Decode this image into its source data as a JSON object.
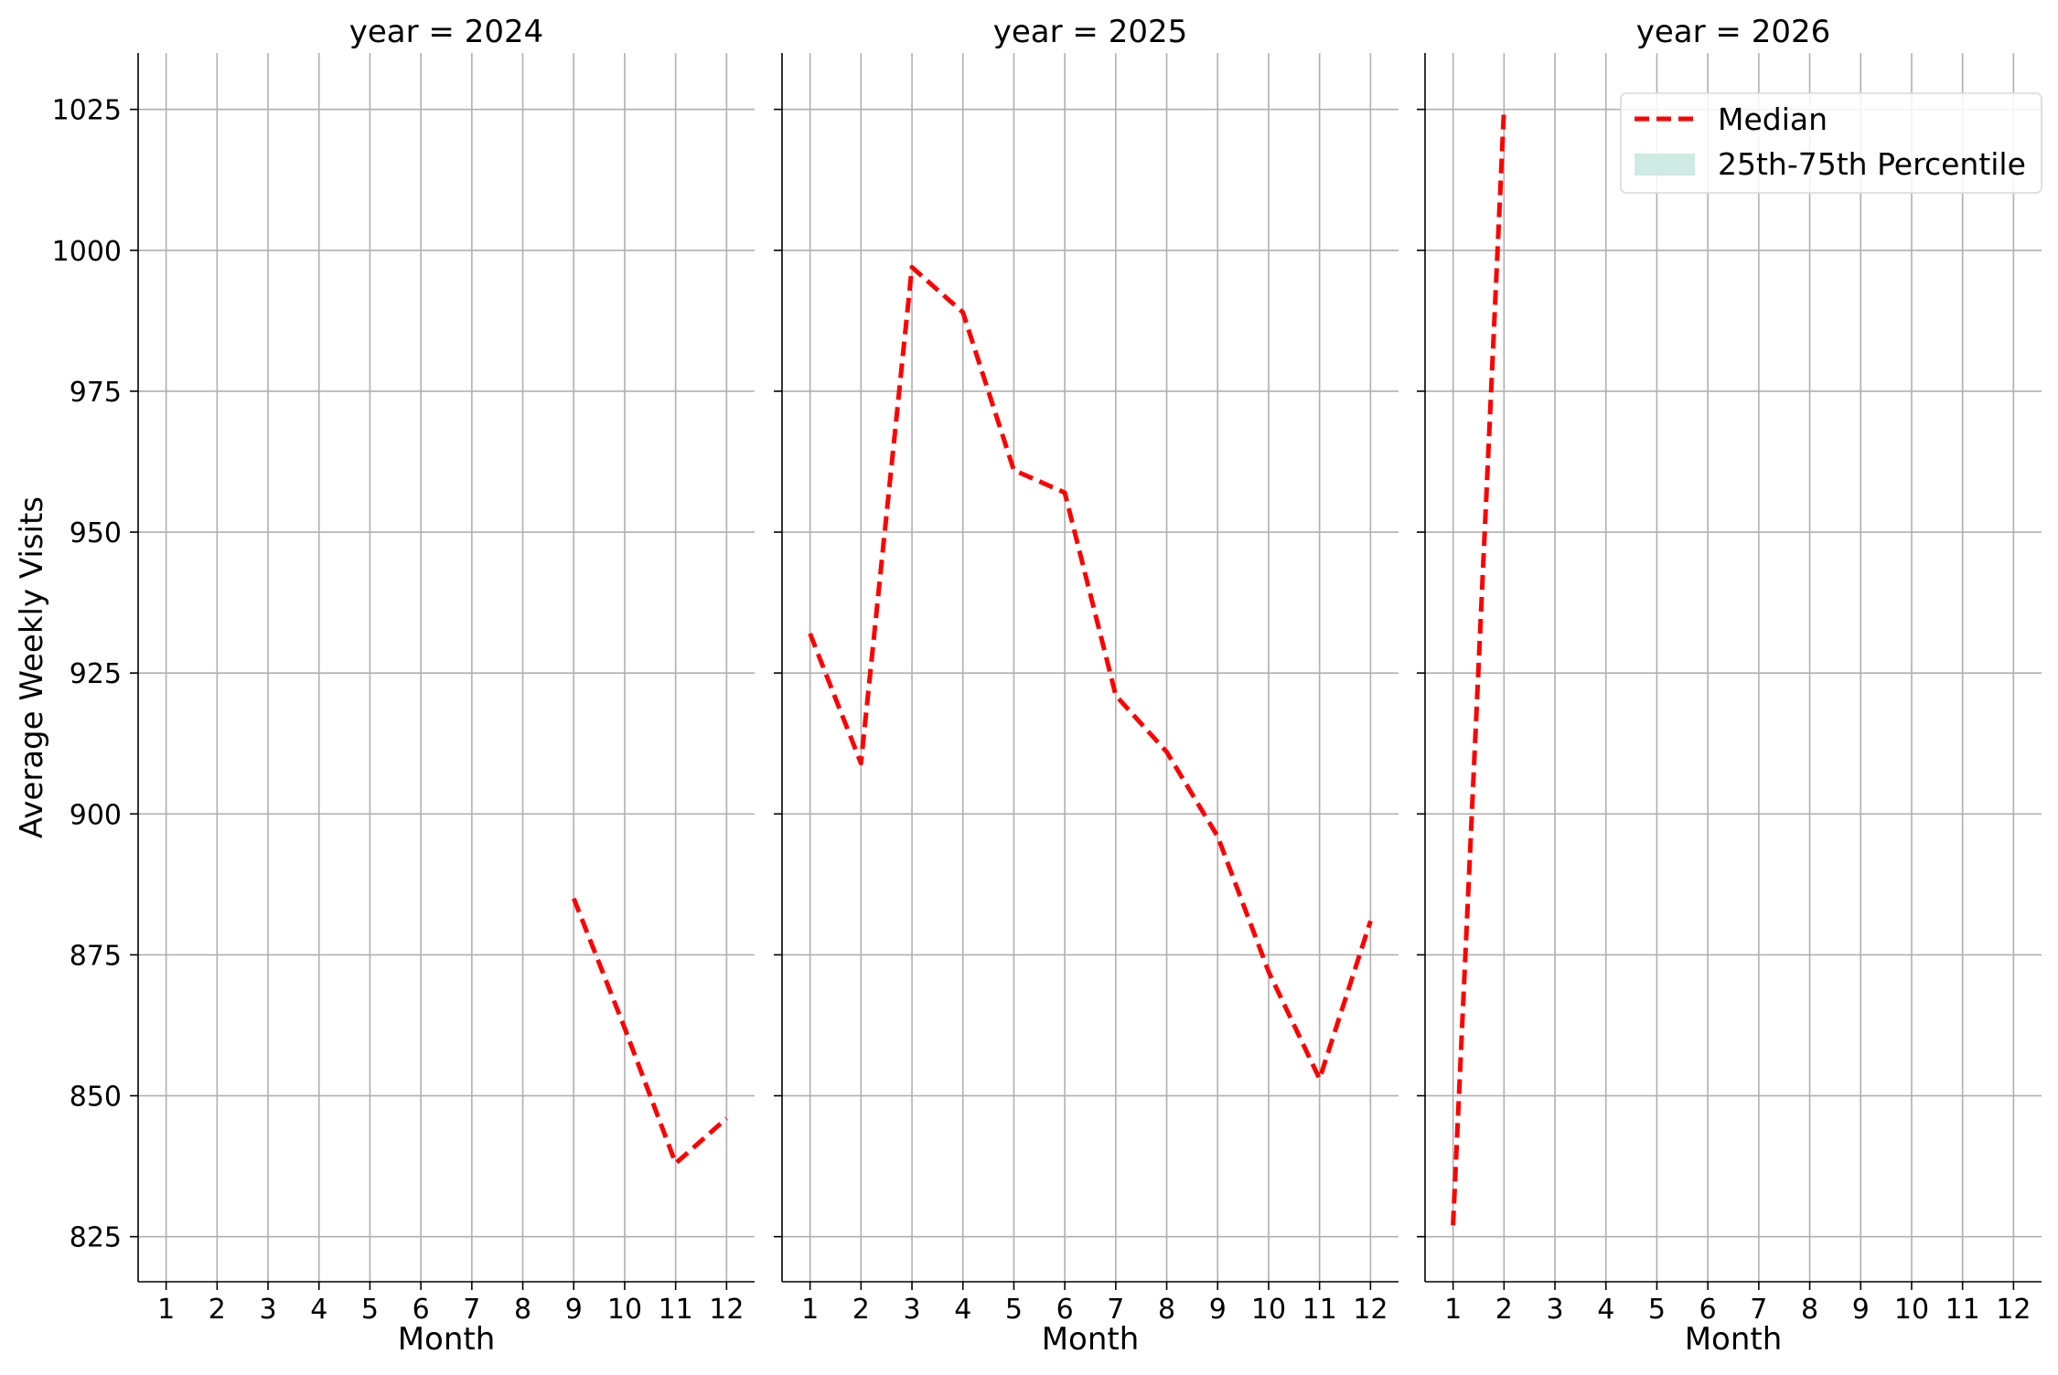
{
  "chart_data": {
    "type": "line",
    "layout": "faceted by year, 3 panels, shared y axis",
    "ylabel": "Average Weekly Visits",
    "xlabel": "Month",
    "ylim": [
      817,
      1035
    ],
    "xlim": [
      0.45,
      12.55
    ],
    "yticks": [
      825,
      850,
      875,
      900,
      925,
      950,
      975,
      1000,
      1025
    ],
    "xticks": [
      1,
      2,
      3,
      4,
      5,
      6,
      7,
      8,
      9,
      10,
      11,
      12
    ],
    "grid": true,
    "line_color": "#ff0000",
    "band_color": "#cfeae3",
    "legend": {
      "placement": "top-right",
      "entries": [
        "Median",
        "25th-75th Percentile"
      ]
    },
    "panels": [
      {
        "title": "year = 2024",
        "series": [
          {
            "name": "Median",
            "x": [
              9,
              10,
              11,
              12
            ],
            "y": [
              885,
              862,
              838,
              846
            ]
          }
        ]
      },
      {
        "title": "year = 2025",
        "series": [
          {
            "name": "Median",
            "x": [
              1,
              2,
              3,
              4,
              5,
              6,
              7,
              8,
              9,
              10,
              11,
              12
            ],
            "y": [
              932,
              909,
              997,
              989,
              961,
              957,
              921,
              911,
              896,
              872,
              853,
              881
            ]
          }
        ]
      },
      {
        "title": "year = 2026",
        "series": [
          {
            "name": "Median",
            "x": [
              1,
              2
            ],
            "y": [
              827,
              1025
            ]
          }
        ]
      }
    ]
  }
}
